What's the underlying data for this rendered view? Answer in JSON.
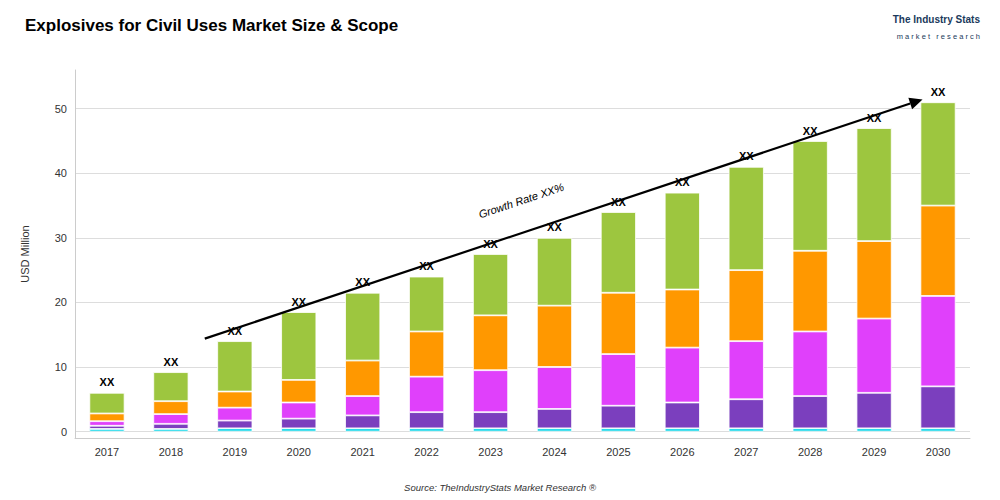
{
  "chart_data": {
    "type": "bar",
    "title": "Explosives for Civil Uses Market Size & Scope",
    "ylabel": "USD Million",
    "source": "Source: TheIndustryStats Market Research ®",
    "logo": [
      "The Industry Stats",
      "m a r k e t   r e s e a r c h"
    ],
    "annotation": "Growth Rate XX%",
    "bar_label": "XX",
    "categories": [
      "2017",
      "2018",
      "2019",
      "2020",
      "2021",
      "2022",
      "2023",
      "2024",
      "2025",
      "2026",
      "2027",
      "2028",
      "2029",
      "2030"
    ],
    "series": [
      {
        "color": "#00d4e8",
        "values": [
          0.4,
          0.4,
          0.5,
          0.5,
          0.5,
          0.5,
          0.5,
          0.5,
          0.5,
          0.5,
          0.5,
          0.5,
          0.5,
          0.5
        ]
      },
      {
        "color": "#7b3fbe",
        "values": [
          0.5,
          0.8,
          1.2,
          1.5,
          2.0,
          2.5,
          2.5,
          3.0,
          3.5,
          4.0,
          4.5,
          5.0,
          5.5,
          6.5
        ]
      },
      {
        "color": "#e040fb",
        "values": [
          0.7,
          1.5,
          2.0,
          2.5,
          3.0,
          5.5,
          6.5,
          6.5,
          8.0,
          8.5,
          9.0,
          10.0,
          11.5,
          14.0
        ]
      },
      {
        "color": "#ff9800",
        "values": [
          1.2,
          2.0,
          2.5,
          3.5,
          5.5,
          7.0,
          8.5,
          9.5,
          9.5,
          9.0,
          11.0,
          12.5,
          12.0,
          14.0
        ]
      },
      {
        "color": "#9dc63f",
        "values": [
          3.2,
          4.5,
          7.8,
          10.5,
          10.5,
          8.5,
          9.5,
          10.5,
          12.5,
          15.0,
          16.0,
          17.0,
          17.5,
          16.0
        ]
      }
    ],
    "stacked": true,
    "ylim": [
      -1,
      56
    ],
    "yticks": [
      0,
      10,
      20,
      30,
      40,
      50
    ],
    "grid": true
  }
}
